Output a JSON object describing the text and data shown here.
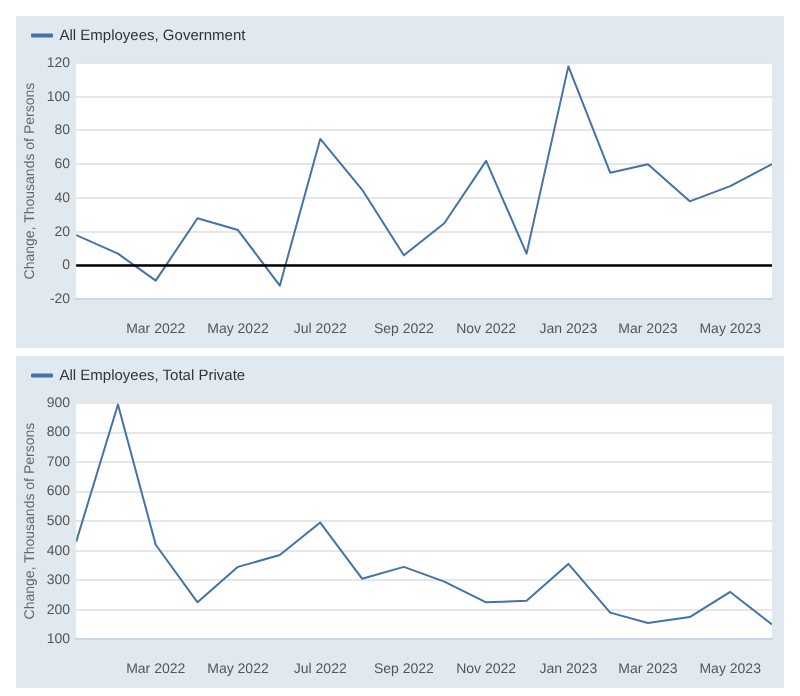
{
  "chart_data": [
    {
      "type": "line",
      "legend": "top",
      "grid": "y",
      "ylabel": "Change, Thousands of Persons",
      "x": [
        "2022-01",
        "2022-02",
        "2022-03",
        "2022-04",
        "2022-05",
        "2022-06",
        "2022-07",
        "2022-08",
        "2022-09",
        "2022-10",
        "2022-11",
        "2022-12",
        "2023-01",
        "2023-02",
        "2023-03",
        "2023-04",
        "2023-05",
        "2023-06"
      ],
      "series": [
        {
          "name": "All Employees, Government",
          "color": "#4572a7",
          "values": [
            18,
            7,
            -9,
            28,
            21,
            -12,
            75,
            45,
            6,
            25,
            62,
            7,
            118,
            55,
            60,
            38,
            47,
            60
          ]
        }
      ],
      "xlim": [
        "2022-01",
        "2023-06"
      ],
      "xticks": [
        {
          "value": "2022-03",
          "label": "Mar 2022"
        },
        {
          "value": "2022-05",
          "label": "May 2022"
        },
        {
          "value": "2022-07",
          "label": "Jul 2022"
        },
        {
          "value": "2022-09",
          "label": "Sep 2022"
        },
        {
          "value": "2022-11",
          "label": "Nov 2022"
        },
        {
          "value": "2023-01",
          "label": "Jan 2023"
        },
        {
          "value": "2023-03",
          "label": "Mar 2023"
        },
        {
          "value": "2023-05",
          "label": "May 2023"
        }
      ],
      "ylim": [
        -20,
        120
      ],
      "yticks": [
        -20,
        0,
        20,
        40,
        60,
        80,
        100,
        120
      ],
      "ref_lines": [
        {
          "axis": "y",
          "value": 0,
          "label": null,
          "color": "#000000"
        }
      ]
    },
    {
      "type": "line",
      "legend": "top",
      "grid": "y",
      "ylabel": "Change, Thousands of Persons",
      "x": [
        "2022-01",
        "2022-02",
        "2022-03",
        "2022-04",
        "2022-05",
        "2022-06",
        "2022-07",
        "2022-08",
        "2022-09",
        "2022-10",
        "2022-11",
        "2022-12",
        "2023-01",
        "2023-02",
        "2023-03",
        "2023-04",
        "2023-05",
        "2023-06"
      ],
      "series": [
        {
          "name": "All Employees, Total Private",
          "color": "#4572a7",
          "values": [
            430,
            895,
            420,
            225,
            345,
            385,
            495,
            305,
            345,
            295,
            225,
            230,
            355,
            190,
            155,
            175,
            260,
            150
          ]
        }
      ],
      "xlim": [
        "2022-01",
        "2023-06"
      ],
      "xticks": [
        {
          "value": "2022-03",
          "label": "Mar 2022"
        },
        {
          "value": "2022-05",
          "label": "May 2022"
        },
        {
          "value": "2022-07",
          "label": "Jul 2022"
        },
        {
          "value": "2022-09",
          "label": "Sep 2022"
        },
        {
          "value": "2022-11",
          "label": "Nov 2022"
        },
        {
          "value": "2023-01",
          "label": "Jan 2023"
        },
        {
          "value": "2023-03",
          "label": "Mar 2023"
        },
        {
          "value": "2023-05",
          "label": "May 2023"
        }
      ],
      "ylim": [
        100,
        900
      ],
      "yticks": [
        100,
        200,
        300,
        400,
        500,
        600,
        700,
        800,
        900
      ]
    }
  ]
}
